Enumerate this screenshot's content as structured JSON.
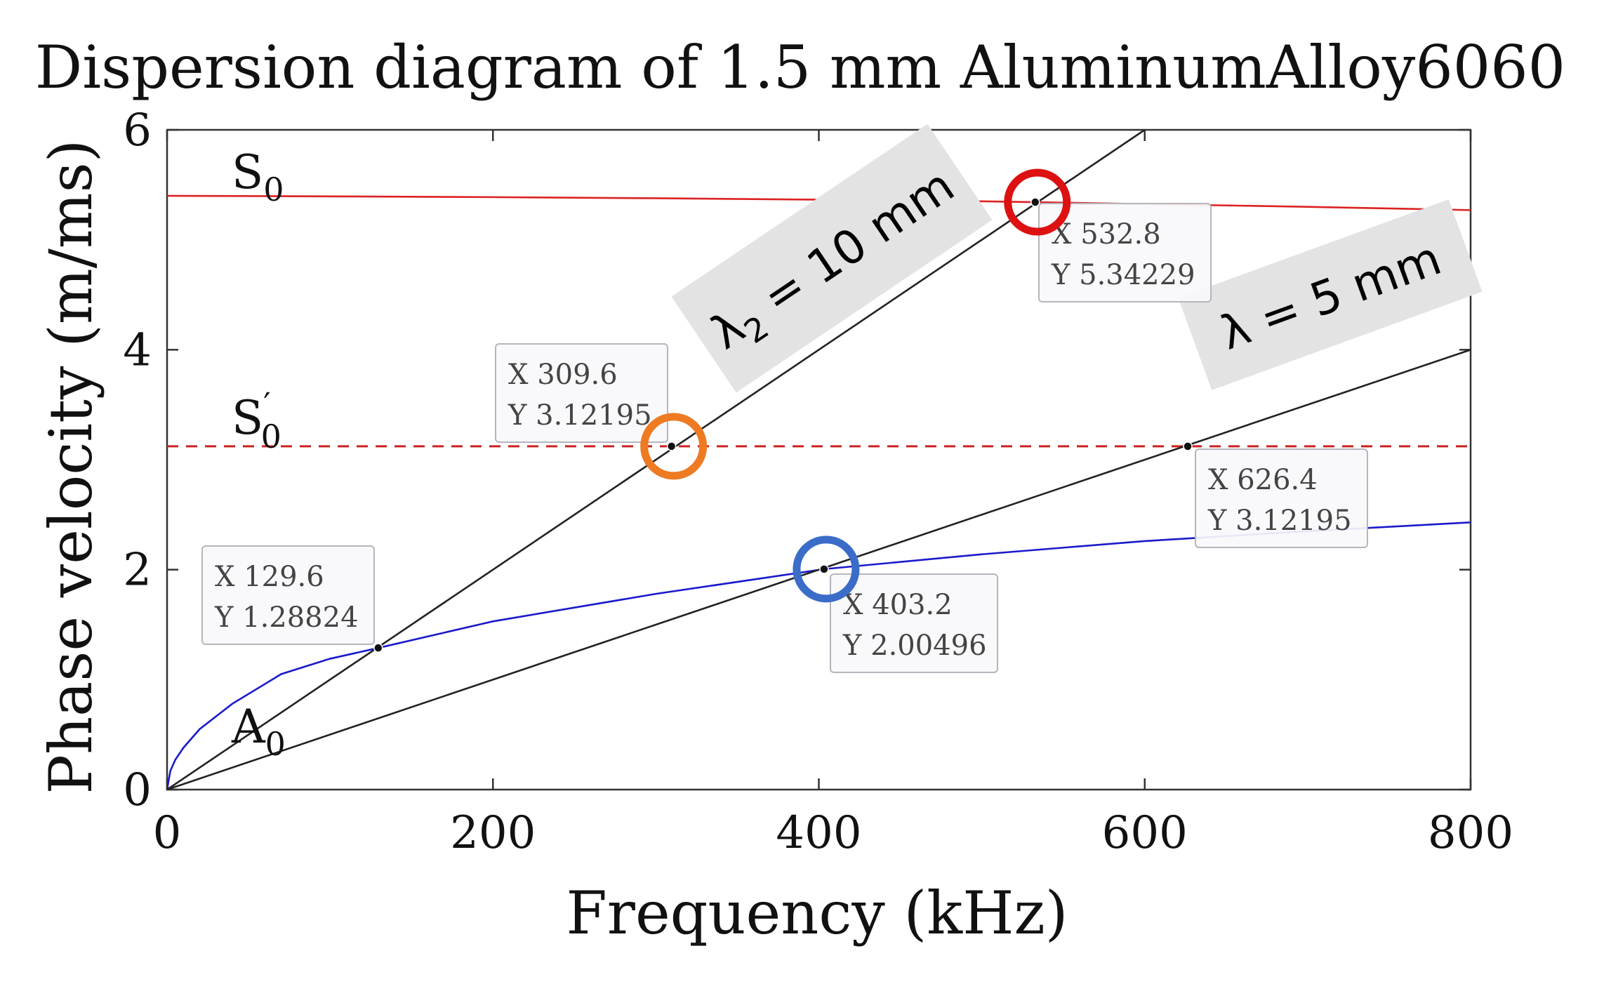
{
  "chart_data": {
    "type": "line",
    "title": "Dispersion diagram of 1.5 mm AluminumAlloy6060",
    "xlabel": "Frequency (kHz)",
    "ylabel": "Phase velocity (m/ms)",
    "xlim": [
      0,
      800
    ],
    "ylim": [
      0,
      6
    ],
    "xticks": [
      "0",
      "200",
      "400",
      "600",
      "800"
    ],
    "yticks": [
      "0",
      "2",
      "4",
      "6"
    ],
    "grid": false,
    "series": [
      {
        "name": "S0",
        "label": "S",
        "sub": "0",
        "color": "#dd2222",
        "style": "solid",
        "x": [
          0,
          100,
          200,
          300,
          400,
          500,
          532.8,
          600,
          700,
          800
        ],
        "y": [
          5.4,
          5.395,
          5.388,
          5.378,
          5.365,
          5.35,
          5.34229,
          5.325,
          5.3,
          5.27
        ]
      },
      {
        "name": "S0 prime",
        "label": "S",
        "sub": "0",
        "sup": "′",
        "color": "#cc2222",
        "style": "dashed",
        "x": [
          0,
          800
        ],
        "y": [
          3.12195,
          3.12195
        ]
      },
      {
        "name": "A0",
        "label": "A",
        "sub": "0",
        "color": "#1a1acc",
        "style": "solid",
        "x": [
          0,
          2,
          5,
          10,
          20,
          40,
          70,
          100,
          129.6,
          200,
          300,
          403.2,
          500,
          600,
          700,
          800
        ],
        "y": [
          0,
          0.17,
          0.27,
          0.38,
          0.55,
          0.78,
          1.05,
          1.19,
          1.28824,
          1.53,
          1.78,
          2.00496,
          2.14,
          2.26,
          2.35,
          2.43
        ]
      },
      {
        "name": "lambda2 = 10 mm",
        "color": "#222222",
        "style": "solid",
        "x": [
          0,
          600
        ],
        "y": [
          0,
          6
        ]
      },
      {
        "name": "lambda = 5 mm",
        "color": "#222222",
        "style": "solid",
        "x": [
          0,
          800
        ],
        "y": [
          0,
          4
        ]
      }
    ],
    "datatips": [
      {
        "x": 129.6,
        "y": 1.28824,
        "x_text": "X 129.6",
        "y_text": "Y 1.28824",
        "circle": ""
      },
      {
        "x": 309.6,
        "y": 3.12195,
        "x_text": "X 309.6",
        "y_text": "Y 3.12195",
        "circle": "#ee7a22"
      },
      {
        "x": 403.2,
        "y": 2.00496,
        "x_text": "X 403.2",
        "y_text": "Y 2.00496",
        "circle": "#3a6cc8"
      },
      {
        "x": 532.8,
        "y": 5.34229,
        "x_text": "X 532.8",
        "y_text": "Y 5.34229",
        "circle": "#dd1111"
      },
      {
        "x": 626.4,
        "y": 3.12195,
        "x_text": "X 626.4",
        "y_text": "Y 3.12195",
        "circle": ""
      }
    ],
    "annotations": [
      {
        "name": "lambda2-label",
        "symbol": "λ",
        "sub": "2",
        "text": " = 10 mm"
      },
      {
        "name": "lambda-label",
        "symbol": "λ",
        "sub": "",
        "text": " = 5 mm"
      }
    ]
  }
}
